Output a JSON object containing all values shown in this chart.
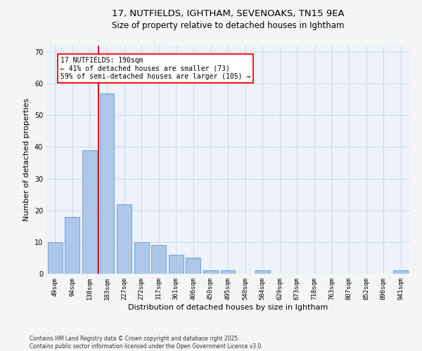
{
  "title1": "17, NUTFIELDS, IGHTHAM, SEVENOAKS, TN15 9EA",
  "title2": "Size of property relative to detached houses in Ightham",
  "xlabel": "Distribution of detached houses by size in Ightham",
  "ylabel": "Number of detached properties",
  "categories": [
    "49sqm",
    "94sqm",
    "138sqm",
    "183sqm",
    "227sqm",
    "272sqm",
    "317sqm",
    "361sqm",
    "406sqm",
    "450sqm",
    "495sqm",
    "540sqm",
    "584sqm",
    "629sqm",
    "673sqm",
    "718sqm",
    "763sqm",
    "807sqm",
    "852sqm",
    "896sqm",
    "941sqm"
  ],
  "values": [
    10,
    18,
    39,
    57,
    22,
    10,
    9,
    6,
    5,
    1,
    1,
    0,
    1,
    0,
    0,
    0,
    0,
    0,
    0,
    0,
    1
  ],
  "bar_color": "#aec6e8",
  "bar_edge_color": "#5a9fd4",
  "bar_edge_width": 0.6,
  "red_line_index": 3,
  "red_line_color": "#cc0000",
  "annotation_box_text": "17 NUTFIELDS: 190sqm\n← 41% of detached houses are smaller (73)\n59% of semi-detached houses are larger (105) →",
  "ylim": [
    0,
    72
  ],
  "yticks": [
    0,
    10,
    20,
    30,
    40,
    50,
    60,
    70
  ],
  "grid_color": "#ccd5e8",
  "background_color": "#eef2fa",
  "fig_background": "#f5f5f5",
  "footer": "Contains HM Land Registry data © Crown copyright and database right 2025.\nContains public sector information licensed under the Open Government Licence v3.0.",
  "title_fontsize": 9.5,
  "subtitle_fontsize": 8.5,
  "tick_fontsize": 6.5,
  "ylabel_fontsize": 8,
  "xlabel_fontsize": 8,
  "annotation_fontsize": 7,
  "footer_fontsize": 5.5
}
